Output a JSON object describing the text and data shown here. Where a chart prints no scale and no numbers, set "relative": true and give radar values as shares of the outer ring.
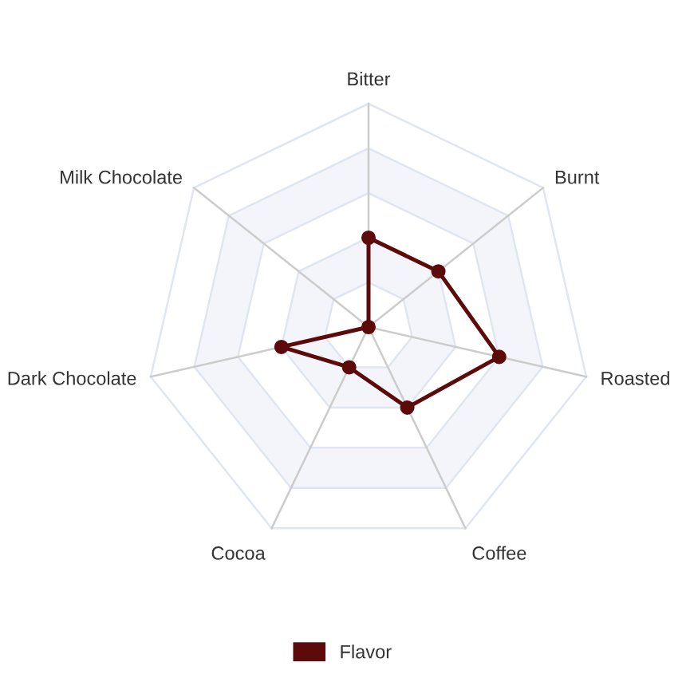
{
  "chart_data": {
    "type": "radar",
    "categories": [
      "Bitter",
      "Burnt",
      "Roasted",
      "Coffee",
      "Cocoa",
      "Dark Chocolate",
      "Milk Chocolate"
    ],
    "relative": true,
    "grid": true,
    "marker": "circle",
    "line_style": "solid",
    "legend": "bottom",
    "series": [
      {
        "name": "Flavor",
        "color": "#5c0a0a",
        "values": [
          0.4,
          0.4,
          0.6,
          0.4,
          0.2,
          0.4,
          0
        ]
      }
    ]
  }
}
